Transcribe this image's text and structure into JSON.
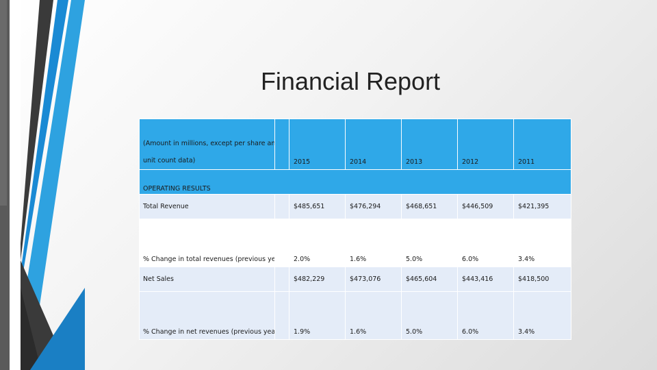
{
  "slide": {
    "title": "Financial Report"
  },
  "table": {
    "header_label_line1": "(Amount in millions, except per share and",
    "header_label_line2": "unit count data)",
    "years": [
      "2015",
      "2014",
      "2013",
      "2012",
      "2011"
    ],
    "section_label": "OPERATING RESULTS",
    "rows": [
      {
        "label": "Total Revenue",
        "values": [
          "$485,651",
          "$476,294",
          "$468,651",
          "$446,509",
          "$421,395"
        ]
      },
      {
        "label": "% Change in total revenues (previous year)",
        "values": [
          "2.0%",
          "1.6%",
          "5.0%",
          "6.0%",
          "3.4%"
        ]
      },
      {
        "label": "Net Sales",
        "values": [
          "$482,229",
          "$473,076",
          "$465,604",
          "$443,416",
          "$418,500"
        ]
      },
      {
        "label": "% Change in net revenues (previous year)",
        "values": [
          "1.9%",
          "1.6%",
          "5.0%",
          "6.0%",
          "3.4%"
        ]
      }
    ]
  },
  "colors": {
    "header_blue": "#2fa8e8",
    "light_row": "#e4ecf8",
    "stripe_dark": "#3a3a3a",
    "stripe_blue": "#1a8ad4"
  }
}
